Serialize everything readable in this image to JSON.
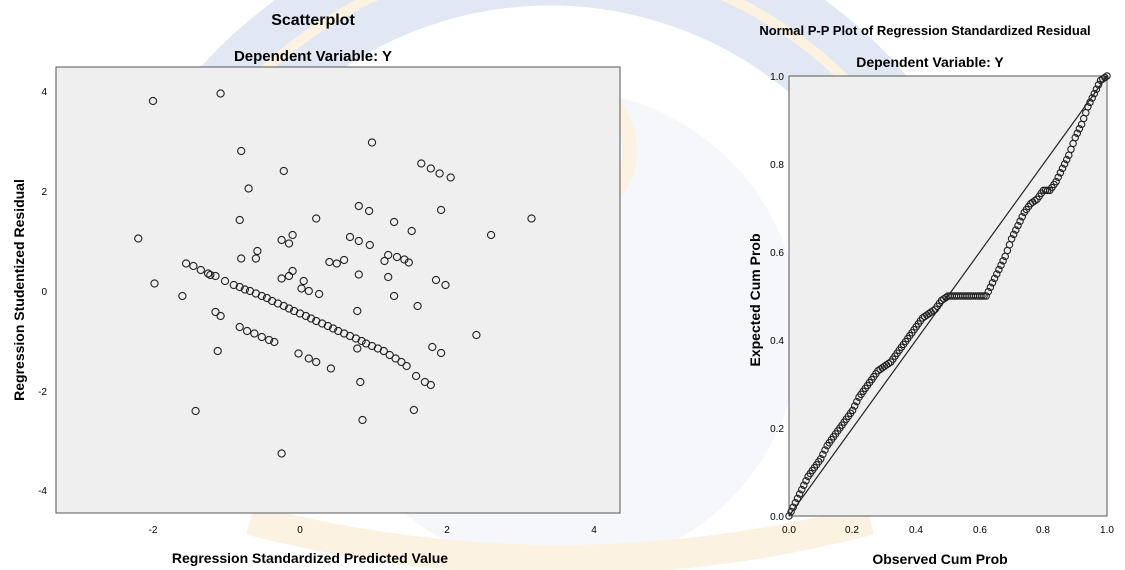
{
  "charts": [
    {
      "title": "Scatterplot",
      "subtitle": "Dependent Variable: Y",
      "xlabel": "Regression Standardized Predicted Value",
      "ylabel": "Regression Studentized Residual",
      "xticks": [
        "-2",
        "0",
        "2",
        "4"
      ],
      "yticks": [
        "4",
        "2",
        "0",
        "-2",
        "-4"
      ]
    },
    {
      "title": "Normal P-P Plot of Regression Standardized Residual",
      "subtitle": "Dependent Variable: Y",
      "xlabel": "Observed Cum Prob",
      "ylabel": "Expected Cum Prob",
      "xticks": [
        "0.0",
        "0.2",
        "0.4",
        "0.6",
        "0.8",
        "1.0"
      ],
      "yticks": [
        "1.0",
        "0.8",
        "0.6",
        "0.4",
        "0.2",
        "0.0"
      ]
    }
  ],
  "chart_data": [
    {
      "type": "scatter",
      "title": "Scatterplot",
      "subtitle": "Dependent Variable: Y",
      "xlabel": "Regression Standardized Predicted Value",
      "ylabel": "Regression Studentized Residual",
      "xlim": [
        -3.3,
        4.3
      ],
      "ylim": [
        -4.4,
        4.4
      ],
      "grid": false,
      "background": "#efefef",
      "points": [
        [
          -2.0,
          3.8
        ],
        [
          -1.08,
          3.95
        ],
        [
          -2.2,
          1.05
        ],
        [
          -1.98,
          0.15
        ],
        [
          -1.6,
          -0.1
        ],
        [
          -1.42,
          -2.4
        ],
        [
          -1.12,
          -1.2
        ],
        [
          -0.8,
          2.8
        ],
        [
          -0.7,
          2.05
        ],
        [
          -0.58,
          0.8
        ],
        [
          -0.6,
          0.65
        ],
        [
          -0.8,
          0.65
        ],
        [
          -0.82,
          1.42
        ],
        [
          -0.22,
          2.4
        ],
        [
          0.22,
          1.45
        ],
        [
          0.98,
          2.97
        ],
        [
          1.65,
          2.55
        ],
        [
          1.78,
          2.45
        ],
        [
          1.9,
          2.35
        ],
        [
          2.05,
          2.27
        ],
        [
          0.8,
          1.7
        ],
        [
          0.94,
          1.6
        ],
        [
          1.28,
          1.38
        ],
        [
          1.52,
          1.2
        ],
        [
          1.92,
          1.62
        ],
        [
          3.15,
          1.45
        ],
        [
          2.6,
          1.12
        ],
        [
          0.68,
          1.08
        ],
        [
          0.8,
          1.0
        ],
        [
          0.95,
          0.92
        ],
        [
          1.2,
          0.72
        ],
        [
          1.32,
          0.68
        ],
        [
          1.42,
          0.63
        ],
        [
          1.48,
          0.57
        ],
        [
          1.15,
          0.6
        ],
        [
          0.6,
          0.62
        ],
        [
          0.5,
          0.55
        ],
        [
          0.4,
          0.58
        ],
        [
          0.8,
          0.33
        ],
        [
          1.2,
          0.28
        ],
        [
          1.85,
          0.22
        ],
        [
          1.98,
          0.12
        ],
        [
          1.28,
          -0.1
        ],
        [
          1.6,
          -0.3
        ],
        [
          2.4,
          -0.88
        ],
        [
          0.78,
          -0.4
        ],
        [
          1.8,
          -1.12
        ],
        [
          1.92,
          -1.24
        ],
        [
          1.58,
          -1.7
        ],
        [
          1.7,
          -1.82
        ],
        [
          1.78,
          -1.88
        ],
        [
          1.55,
          -2.38
        ],
        [
          0.82,
          -1.82
        ],
        [
          0.85,
          -2.58
        ],
        [
          -0.25,
          -3.25
        ],
        [
          -0.1,
          1.12
        ],
        [
          -0.1,
          0.4
        ],
        [
          -0.25,
          1.02
        ],
        [
          -0.15,
          0.95
        ],
        [
          -0.15,
          0.3
        ],
        [
          -0.25,
          0.25
        ],
        [
          0.05,
          0.2
        ],
        [
          0.02,
          0.05
        ],
        [
          0.12,
          0.0
        ],
        [
          0.26,
          -0.06
        ],
        [
          -1.55,
          0.55
        ],
        [
          -1.45,
          0.5
        ],
        [
          -1.35,
          0.42
        ],
        [
          -1.25,
          0.35
        ],
        [
          -1.22,
          0.32
        ],
        [
          -1.15,
          0.3
        ],
        [
          -1.02,
          0.2
        ],
        [
          -0.9,
          0.12
        ],
        [
          -0.82,
          0.08
        ],
        [
          -0.75,
          0.03
        ],
        [
          -0.68,
          0.0
        ],
        [
          -0.6,
          -0.05
        ],
        [
          -0.52,
          -0.1
        ],
        [
          -0.45,
          -0.14
        ],
        [
          -0.38,
          -0.2
        ],
        [
          -0.3,
          -0.25
        ],
        [
          -0.22,
          -0.3
        ],
        [
          -0.15,
          -0.35
        ],
        [
          -0.08,
          -0.4
        ],
        [
          0.0,
          -0.45
        ],
        [
          0.08,
          -0.5
        ],
        [
          0.15,
          -0.55
        ],
        [
          0.22,
          -0.6
        ],
        [
          0.3,
          -0.65
        ],
        [
          0.38,
          -0.7
        ],
        [
          0.45,
          -0.75
        ],
        [
          0.52,
          -0.8
        ],
        [
          0.6,
          -0.85
        ],
        [
          0.68,
          -0.9
        ],
        [
          0.76,
          -0.95
        ],
        [
          0.84,
          -1.0
        ],
        [
          0.9,
          -1.05
        ],
        [
          0.98,
          -1.1
        ],
        [
          1.06,
          -1.15
        ],
        [
          1.14,
          -1.2
        ],
        [
          1.22,
          -1.28
        ],
        [
          1.3,
          -1.35
        ],
        [
          1.38,
          -1.42
        ],
        [
          1.45,
          -1.5
        ],
        [
          -1.15,
          -0.42
        ],
        [
          -1.08,
          -0.5
        ],
        [
          -0.82,
          -0.72
        ],
        [
          -0.72,
          -0.8
        ],
        [
          -0.62,
          -0.85
        ],
        [
          -0.52,
          -0.92
        ],
        [
          -0.42,
          -0.98
        ],
        [
          -0.35,
          -1.02
        ],
        [
          -0.02,
          -1.25
        ],
        [
          0.12,
          -1.35
        ],
        [
          0.22,
          -1.42
        ],
        [
          0.42,
          -1.55
        ],
        [
          0.78,
          -1.15
        ]
      ]
    },
    {
      "type": "line",
      "title": "Normal P-P Plot of Regression Standardized Residual",
      "subtitle": "Dependent Variable: Y",
      "xlabel": "Observed Cum Prob",
      "ylabel": "Expected Cum Prob",
      "xlim": [
        0,
        1
      ],
      "ylim": [
        0,
        1
      ],
      "grid": false,
      "background": "#efefef",
      "series": [
        {
          "style": "markers",
          "x": [
            0.0,
            0.02,
            0.04,
            0.06,
            0.08,
            0.1,
            0.12,
            0.14,
            0.16,
            0.18,
            0.2,
            0.22,
            0.24,
            0.26,
            0.28,
            0.3,
            0.32,
            0.34,
            0.36,
            0.38,
            0.4,
            0.42,
            0.44,
            0.46,
            0.48,
            0.5,
            0.52,
            0.54,
            0.56,
            0.58,
            0.6,
            0.62,
            0.64,
            0.66,
            0.68,
            0.7,
            0.72,
            0.74,
            0.76,
            0.78,
            0.8,
            0.82,
            0.84,
            0.86,
            0.88,
            0.9,
            0.92,
            0.94,
            0.96,
            0.98,
            1.0
          ],
          "y": [
            0.0,
            0.03,
            0.06,
            0.09,
            0.11,
            0.13,
            0.16,
            0.18,
            0.2,
            0.22,
            0.24,
            0.27,
            0.29,
            0.31,
            0.33,
            0.34,
            0.35,
            0.37,
            0.39,
            0.41,
            0.43,
            0.45,
            0.46,
            0.47,
            0.49,
            0.5,
            0.5,
            0.5,
            0.5,
            0.5,
            0.5,
            0.5,
            0.53,
            0.56,
            0.59,
            0.63,
            0.66,
            0.69,
            0.71,
            0.72,
            0.74,
            0.74,
            0.76,
            0.79,
            0.82,
            0.86,
            0.89,
            0.93,
            0.96,
            0.99,
            1.0
          ]
        },
        {
          "style": "line",
          "x": [
            0,
            1
          ],
          "y": [
            0,
            1
          ]
        }
      ]
    }
  ]
}
